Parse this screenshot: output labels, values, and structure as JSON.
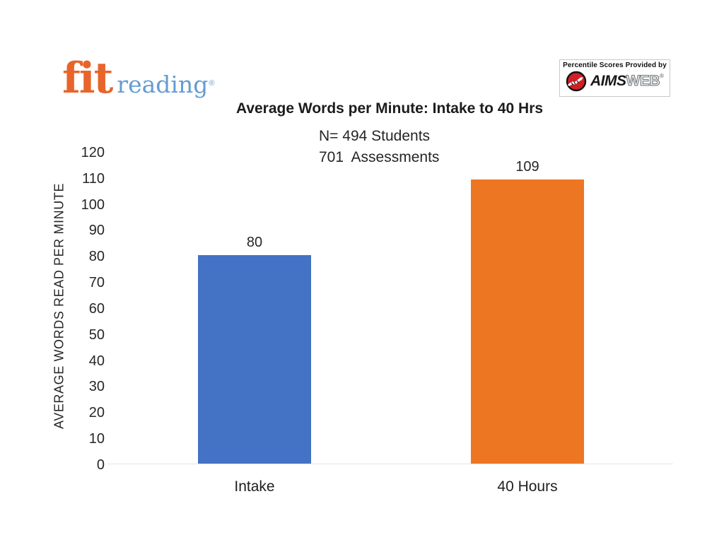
{
  "logo": {
    "fit": "fit",
    "reading": "reading",
    "registered": "®"
  },
  "provider": {
    "caption": "Percentile Scores Provided by",
    "brand_aims": "AIMS",
    "brand_web": "WEB",
    "registered": "®",
    "icon": "trend-line-in-red-circle-icon"
  },
  "chart_data": {
    "type": "bar",
    "title": "Average Words per Minute: Intake to 40 Hrs",
    "subtitle_lines": [
      "N= 494 Students",
      "701  Assessments"
    ],
    "categories": [
      "Intake",
      "40 Hours"
    ],
    "values": [
      80,
      109
    ],
    "bar_colors": [
      "#4472C4",
      "#ED7623"
    ],
    "ylabel": "AVERAGE WORDS READ PER MINUTE",
    "xlabel": "",
    "ylim": [
      0,
      120
    ],
    "yticks": [
      0,
      10,
      20,
      30,
      40,
      50,
      60,
      70,
      80,
      90,
      100,
      110,
      120
    ],
    "grid": false,
    "legend": false,
    "data_labels": true
  },
  "colors": {
    "bar_intake": "#4472C4",
    "bar_40hours": "#ED7623",
    "logo_fit_orange": "#E8642B",
    "logo_reading_blue": "#649CD3",
    "aimsweb_red": "#CF2027"
  }
}
